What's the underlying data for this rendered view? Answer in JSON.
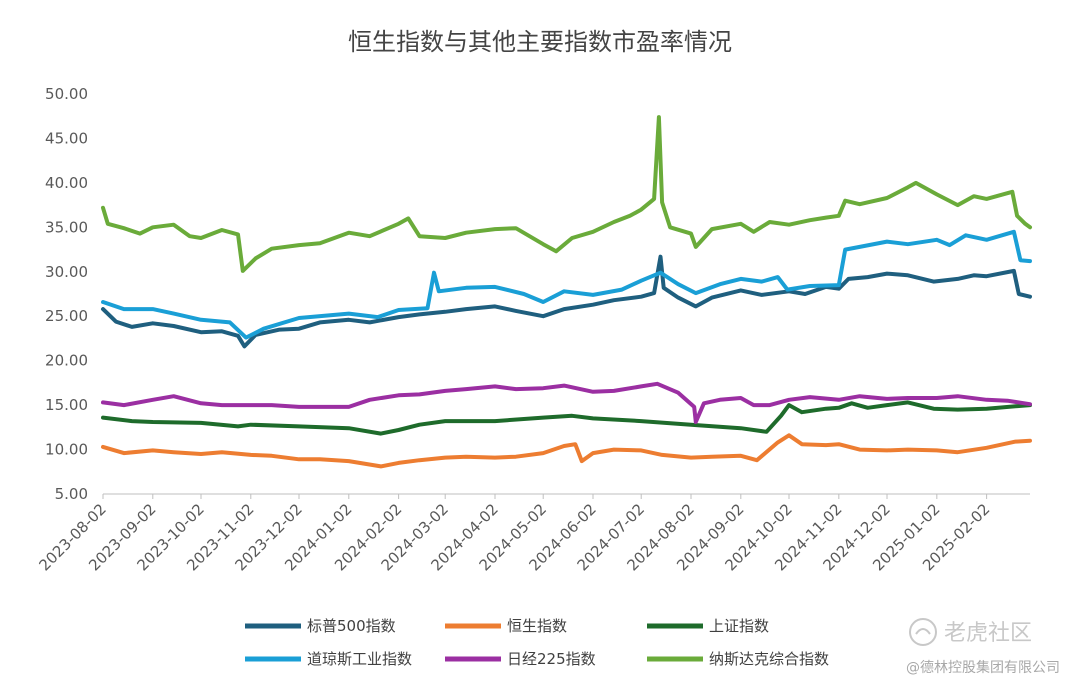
{
  "chart_data": {
    "type": "line",
    "title": "恒生指数与其他主要指数市盈率情况",
    "xlabel": "",
    "ylabel": "",
    "ylim": [
      5,
      50
    ],
    "yticks": [
      "5.00",
      "10.00",
      "15.00",
      "20.00",
      "25.00",
      "30.00",
      "35.00",
      "40.00",
      "45.00",
      "50.00"
    ],
    "x_ticks": [
      "2023-08-02",
      "2023-09-02",
      "2023-10-02",
      "2023-11-02",
      "2023-12-02",
      "2024-01-02",
      "2024-02-02",
      "2024-03-02",
      "2024-04-02",
      "2024-05-02",
      "2024-06-02",
      "2024-07-02",
      "2024-08-02",
      "2024-09-02",
      "2024-10-02",
      "2024-11-02",
      "2024-12-02",
      "2025-01-02",
      "2025-02-02"
    ],
    "x_start": "2023-08-02",
    "x_end": "2025-03-01",
    "grid": false,
    "legend_position": "bottom",
    "series": [
      {
        "name": "标普500指数",
        "color": "#1f5f7f",
        "points": [
          [
            "2023-08-02",
            25.8
          ],
          [
            "2023-08-10",
            24.4
          ],
          [
            "2023-08-20",
            23.8
          ],
          [
            "2023-09-02",
            24.2
          ],
          [
            "2023-09-15",
            23.9
          ],
          [
            "2023-10-02",
            23.2
          ],
          [
            "2023-10-15",
            23.3
          ],
          [
            "2023-10-25",
            22.8
          ],
          [
            "2023-10-29",
            21.6
          ],
          [
            "2023-11-05",
            22.9
          ],
          [
            "2023-11-20",
            23.5
          ],
          [
            "2023-12-02",
            23.6
          ],
          [
            "2023-12-15",
            24.3
          ],
          [
            "2024-01-02",
            24.6
          ],
          [
            "2024-01-15",
            24.3
          ],
          [
            "2024-02-02",
            24.9
          ],
          [
            "2024-02-15",
            25.2
          ],
          [
            "2024-03-02",
            25.5
          ],
          [
            "2024-03-15",
            25.8
          ],
          [
            "2024-04-02",
            26.1
          ],
          [
            "2024-04-15",
            25.6
          ],
          [
            "2024-05-02",
            25.0
          ],
          [
            "2024-05-15",
            25.8
          ],
          [
            "2024-06-02",
            26.3
          ],
          [
            "2024-06-15",
            26.8
          ],
          [
            "2024-07-02",
            27.2
          ],
          [
            "2024-07-10",
            27.6
          ],
          [
            "2024-07-14",
            31.7
          ],
          [
            "2024-07-16",
            28.2
          ],
          [
            "2024-07-25",
            27.1
          ],
          [
            "2024-08-05",
            26.1
          ],
          [
            "2024-08-15",
            27.1
          ],
          [
            "2024-09-02",
            27.9
          ],
          [
            "2024-09-15",
            27.4
          ],
          [
            "2024-10-02",
            27.8
          ],
          [
            "2024-10-12",
            27.5
          ],
          [
            "2024-10-25",
            28.3
          ],
          [
            "2024-11-02",
            28.1
          ],
          [
            "2024-11-08",
            29.2
          ],
          [
            "2024-11-20",
            29.4
          ],
          [
            "2024-12-02",
            29.8
          ],
          [
            "2024-12-15",
            29.6
          ],
          [
            "2024-12-31",
            28.9
          ],
          [
            "2025-01-15",
            29.2
          ],
          [
            "2025-01-25",
            29.6
          ],
          [
            "2025-02-02",
            29.5
          ],
          [
            "2025-02-19",
            30.1
          ],
          [
            "2025-02-22",
            27.5
          ],
          [
            "2025-03-01",
            27.2
          ]
        ]
      },
      {
        "name": "恒生指数",
        "color": "#ed7d31",
        "points": [
          [
            "2023-08-02",
            10.3
          ],
          [
            "2023-08-15",
            9.6
          ],
          [
            "2023-09-02",
            9.9
          ],
          [
            "2023-09-15",
            9.7
          ],
          [
            "2023-10-02",
            9.5
          ],
          [
            "2023-10-15",
            9.7
          ],
          [
            "2023-11-02",
            9.4
          ],
          [
            "2023-11-15",
            9.3
          ],
          [
            "2023-12-02",
            8.9
          ],
          [
            "2023-12-15",
            8.9
          ],
          [
            "2024-01-02",
            8.7
          ],
          [
            "2024-01-22",
            8.1
          ],
          [
            "2024-02-02",
            8.5
          ],
          [
            "2024-02-15",
            8.8
          ],
          [
            "2024-03-02",
            9.1
          ],
          [
            "2024-03-15",
            9.2
          ],
          [
            "2024-04-02",
            9.1
          ],
          [
            "2024-04-15",
            9.2
          ],
          [
            "2024-05-02",
            9.6
          ],
          [
            "2024-05-15",
            10.4
          ],
          [
            "2024-05-22",
            10.6
          ],
          [
            "2024-05-26",
            8.7
          ],
          [
            "2024-06-02",
            9.6
          ],
          [
            "2024-06-15",
            10.0
          ],
          [
            "2024-07-02",
            9.9
          ],
          [
            "2024-07-15",
            9.4
          ],
          [
            "2024-08-02",
            9.1
          ],
          [
            "2024-08-15",
            9.2
          ],
          [
            "2024-09-02",
            9.3
          ],
          [
            "2024-09-12",
            8.8
          ],
          [
            "2024-09-25",
            10.8
          ],
          [
            "2024-10-02",
            11.6
          ],
          [
            "2024-10-10",
            10.6
          ],
          [
            "2024-10-25",
            10.5
          ],
          [
            "2024-11-02",
            10.6
          ],
          [
            "2024-11-15",
            10.0
          ],
          [
            "2024-12-02",
            9.9
          ],
          [
            "2024-12-15",
            10.0
          ],
          [
            "2025-01-02",
            9.9
          ],
          [
            "2025-01-15",
            9.7
          ],
          [
            "2025-02-02",
            10.2
          ],
          [
            "2025-02-20",
            10.9
          ],
          [
            "2025-03-01",
            11.0
          ]
        ]
      },
      {
        "name": "上证指数",
        "color": "#1e6b2b",
        "points": [
          [
            "2023-08-02",
            13.6
          ],
          [
            "2023-08-20",
            13.2
          ],
          [
            "2023-09-02",
            13.1
          ],
          [
            "2023-10-02",
            13.0
          ],
          [
            "2023-10-25",
            12.6
          ],
          [
            "2023-11-02",
            12.8
          ],
          [
            "2023-12-02",
            12.6
          ],
          [
            "2024-01-02",
            12.4
          ],
          [
            "2024-01-22",
            11.8
          ],
          [
            "2024-02-02",
            12.2
          ],
          [
            "2024-02-15",
            12.8
          ],
          [
            "2024-03-02",
            13.2
          ],
          [
            "2024-04-02",
            13.2
          ],
          [
            "2024-05-02",
            13.6
          ],
          [
            "2024-05-20",
            13.8
          ],
          [
            "2024-06-02",
            13.5
          ],
          [
            "2024-07-02",
            13.2
          ],
          [
            "2024-08-02",
            12.8
          ],
          [
            "2024-09-02",
            12.4
          ],
          [
            "2024-09-18",
            12.0
          ],
          [
            "2024-09-27",
            13.8
          ],
          [
            "2024-10-02",
            15.0
          ],
          [
            "2024-10-10",
            14.2
          ],
          [
            "2024-10-25",
            14.6
          ],
          [
            "2024-11-02",
            14.7
          ],
          [
            "2024-11-10",
            15.2
          ],
          [
            "2024-11-20",
            14.7
          ],
          [
            "2024-12-02",
            15.0
          ],
          [
            "2024-12-15",
            15.3
          ],
          [
            "2024-12-31",
            14.6
          ],
          [
            "2025-01-15",
            14.5
          ],
          [
            "2025-02-02",
            14.6
          ],
          [
            "2025-03-01",
            15.0
          ]
        ]
      },
      {
        "name": "道琼斯工业指数",
        "color": "#1a9fd6",
        "points": [
          [
            "2023-08-02",
            26.6
          ],
          [
            "2023-08-15",
            25.8
          ],
          [
            "2023-09-02",
            25.8
          ],
          [
            "2023-09-15",
            25.3
          ],
          [
            "2023-10-02",
            24.6
          ],
          [
            "2023-10-20",
            24.3
          ],
          [
            "2023-10-30",
            22.6
          ],
          [
            "2023-11-10",
            23.6
          ],
          [
            "2023-12-02",
            24.8
          ],
          [
            "2024-01-02",
            25.3
          ],
          [
            "2024-01-20",
            24.9
          ],
          [
            "2024-02-02",
            25.7
          ],
          [
            "2024-02-20",
            25.9
          ],
          [
            "2024-02-24",
            29.9
          ],
          [
            "2024-02-27",
            27.8
          ],
          [
            "2024-03-15",
            28.2
          ],
          [
            "2024-04-02",
            28.3
          ],
          [
            "2024-04-20",
            27.5
          ],
          [
            "2024-05-02",
            26.6
          ],
          [
            "2024-05-15",
            27.8
          ],
          [
            "2024-06-02",
            27.4
          ],
          [
            "2024-06-20",
            28.0
          ],
          [
            "2024-07-02",
            29.0
          ],
          [
            "2024-07-14",
            29.9
          ],
          [
            "2024-07-25",
            28.6
          ],
          [
            "2024-08-05",
            27.6
          ],
          [
            "2024-08-20",
            28.6
          ],
          [
            "2024-09-02",
            29.2
          ],
          [
            "2024-09-15",
            28.9
          ],
          [
            "2024-09-25",
            29.4
          ],
          [
            "2024-10-01",
            28.0
          ],
          [
            "2024-10-15",
            28.4
          ],
          [
            "2024-11-02",
            28.5
          ],
          [
            "2024-11-06",
            32.5
          ],
          [
            "2024-11-15",
            32.8
          ],
          [
            "2024-12-02",
            33.4
          ],
          [
            "2024-12-15",
            33.1
          ],
          [
            "2025-01-02",
            33.6
          ],
          [
            "2025-01-10",
            33.0
          ],
          [
            "2025-01-20",
            34.1
          ],
          [
            "2025-02-02",
            33.6
          ],
          [
            "2025-02-19",
            34.5
          ],
          [
            "2025-02-23",
            31.3
          ],
          [
            "2025-03-01",
            31.2
          ]
        ]
      },
      {
        "name": "日经225指数",
        "color": "#9b2fa2",
        "points": [
          [
            "2023-08-02",
            15.3
          ],
          [
            "2023-08-15",
            15.0
          ],
          [
            "2023-09-02",
            15.6
          ],
          [
            "2023-09-15",
            16.0
          ],
          [
            "2023-10-02",
            15.2
          ],
          [
            "2023-10-15",
            15.0
          ],
          [
            "2023-11-02",
            15.0
          ],
          [
            "2023-11-15",
            15.0
          ],
          [
            "2023-12-02",
            14.8
          ],
          [
            "2024-01-02",
            14.8
          ],
          [
            "2024-01-15",
            15.6
          ],
          [
            "2024-02-02",
            16.1
          ],
          [
            "2024-02-15",
            16.2
          ],
          [
            "2024-03-02",
            16.6
          ],
          [
            "2024-03-15",
            16.8
          ],
          [
            "2024-04-02",
            17.1
          ],
          [
            "2024-04-15",
            16.8
          ],
          [
            "2024-05-02",
            16.9
          ],
          [
            "2024-05-15",
            17.2
          ],
          [
            "2024-06-02",
            16.5
          ],
          [
            "2024-06-15",
            16.6
          ],
          [
            "2024-07-02",
            17.1
          ],
          [
            "2024-07-12",
            17.4
          ],
          [
            "2024-07-25",
            16.4
          ],
          [
            "2024-08-04",
            14.8
          ],
          [
            "2024-08-05",
            13.1
          ],
          [
            "2024-08-10",
            15.2
          ],
          [
            "2024-08-20",
            15.6
          ],
          [
            "2024-09-02",
            15.8
          ],
          [
            "2024-09-10",
            15.0
          ],
          [
            "2024-09-20",
            15.0
          ],
          [
            "2024-10-02",
            15.6
          ],
          [
            "2024-10-15",
            15.9
          ],
          [
            "2024-11-02",
            15.6
          ],
          [
            "2024-11-15",
            16.0
          ],
          [
            "2024-12-02",
            15.7
          ],
          [
            "2024-12-15",
            15.8
          ],
          [
            "2025-01-02",
            15.8
          ],
          [
            "2025-01-15",
            16.0
          ],
          [
            "2025-02-02",
            15.6
          ],
          [
            "2025-02-15",
            15.5
          ],
          [
            "2025-03-01",
            15.1
          ]
        ]
      },
      {
        "name": "纳斯达克综合指数",
        "color": "#6aab3a",
        "points": [
          [
            "2023-08-02",
            37.2
          ],
          [
            "2023-08-05",
            35.4
          ],
          [
            "2023-08-15",
            34.9
          ],
          [
            "2023-08-25",
            34.3
          ],
          [
            "2023-09-02",
            35.0
          ],
          [
            "2023-09-15",
            35.3
          ],
          [
            "2023-09-25",
            34.0
          ],
          [
            "2023-10-02",
            33.8
          ],
          [
            "2023-10-15",
            34.7
          ],
          [
            "2023-10-25",
            34.2
          ],
          [
            "2023-10-28",
            30.1
          ],
          [
            "2023-11-05",
            31.5
          ],
          [
            "2023-11-15",
            32.6
          ],
          [
            "2023-12-02",
            33.0
          ],
          [
            "2023-12-15",
            33.2
          ],
          [
            "2024-01-02",
            34.4
          ],
          [
            "2024-01-15",
            34.0
          ],
          [
            "2024-02-02",
            35.4
          ],
          [
            "2024-02-08",
            36.0
          ],
          [
            "2024-02-15",
            34.0
          ],
          [
            "2024-03-02",
            33.8
          ],
          [
            "2024-03-15",
            34.4
          ],
          [
            "2024-04-02",
            34.8
          ],
          [
            "2024-04-15",
            34.9
          ],
          [
            "2024-05-02",
            33.1
          ],
          [
            "2024-05-10",
            32.3
          ],
          [
            "2024-05-20",
            33.8
          ],
          [
            "2024-06-02",
            34.5
          ],
          [
            "2024-06-15",
            35.6
          ],
          [
            "2024-06-25",
            36.3
          ],
          [
            "2024-07-02",
            37.0
          ],
          [
            "2024-07-10",
            38.2
          ],
          [
            "2024-07-13",
            47.4
          ],
          [
            "2024-07-15",
            37.8
          ],
          [
            "2024-07-20",
            35.0
          ],
          [
            "2024-08-02",
            34.3
          ],
          [
            "2024-08-05",
            32.8
          ],
          [
            "2024-08-15",
            34.8
          ],
          [
            "2024-09-02",
            35.4
          ],
          [
            "2024-09-10",
            34.5
          ],
          [
            "2024-09-20",
            35.6
          ],
          [
            "2024-10-02",
            35.3
          ],
          [
            "2024-10-15",
            35.8
          ],
          [
            "2024-10-25",
            36.1
          ],
          [
            "2024-11-02",
            36.3
          ],
          [
            "2024-11-06",
            38.0
          ],
          [
            "2024-11-15",
            37.6
          ],
          [
            "2024-12-02",
            38.3
          ],
          [
            "2024-12-15",
            39.5
          ],
          [
            "2024-12-20",
            40.0
          ],
          [
            "2025-01-02",
            38.7
          ],
          [
            "2025-01-15",
            37.5
          ],
          [
            "2025-01-25",
            38.5
          ],
          [
            "2025-02-02",
            38.2
          ],
          [
            "2025-02-18",
            39.0
          ],
          [
            "2025-02-21",
            36.3
          ],
          [
            "2025-02-26",
            35.4
          ],
          [
            "2025-03-01",
            35.0
          ]
        ]
      }
    ]
  },
  "watermark": {
    "brand": "老虎社区",
    "handle": "@德林控股集团有限公司"
  }
}
